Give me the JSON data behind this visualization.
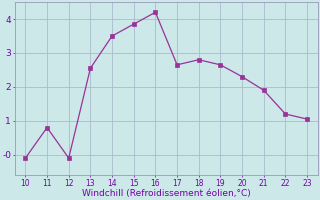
{
  "x": [
    10,
    11,
    12,
    13,
    14,
    15,
    16,
    17,
    18,
    19,
    20,
    21,
    22,
    23
  ],
  "y": [
    -0.1,
    0.8,
    -0.1,
    2.55,
    3.5,
    3.85,
    4.2,
    2.65,
    2.8,
    2.65,
    2.3,
    1.9,
    1.2,
    1.05
  ],
  "line_color": "#993399",
  "marker_color": "#993399",
  "bg_color": "#cce8e8",
  "grid_color": "#aabbcc",
  "xlabel": "Windchill (Refroidissement éolien,°C)",
  "xlabel_color": "#7700aa",
  "tick_color": "#7700aa",
  "xlim": [
    9.5,
    23.5
  ],
  "ylim": [
    -0.6,
    4.5
  ],
  "yticks": [
    0,
    1,
    2,
    3,
    4
  ],
  "ytick_labels": [
    "-0",
    "1",
    "2",
    "3",
    "4"
  ],
  "xticks": [
    10,
    11,
    12,
    13,
    14,
    15,
    16,
    17,
    18,
    19,
    20,
    21,
    22,
    23
  ],
  "figsize": [
    3.2,
    2.0
  ],
  "dpi": 100
}
